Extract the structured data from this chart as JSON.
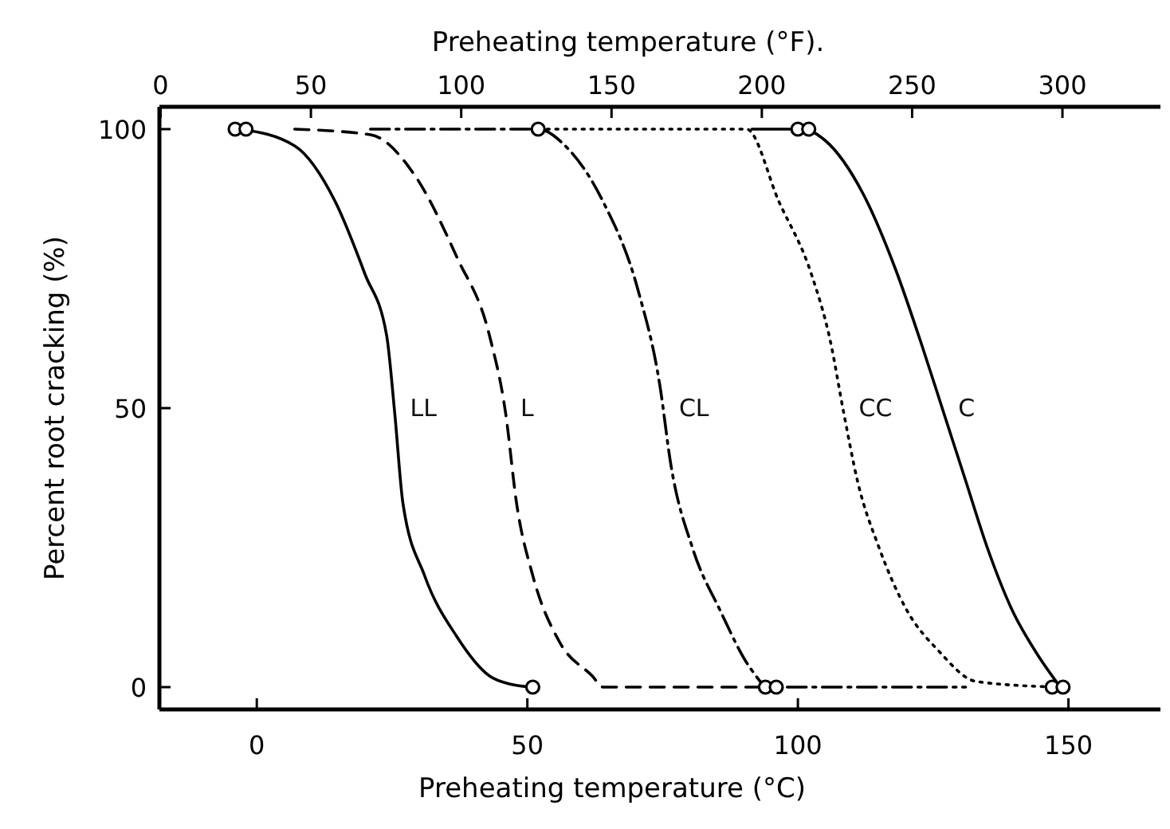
{
  "chart_data": {
    "type": "line",
    "xlabel": "Preheating temperature (°C)",
    "x2label": "Preheating temperature (°F).",
    "ylabel": "Percent root cracking (%)",
    "xlim": [
      -18,
      167
    ],
    "xticks": [
      0,
      50,
      100,
      150
    ],
    "x2lim": [
      -0.4,
      332.6
    ],
    "x2ticks": [
      0,
      50,
      100,
      150,
      200,
      250,
      300
    ],
    "ylim": [
      -4,
      104
    ],
    "yticks": [
      0,
      50,
      100
    ],
    "grid": false,
    "series": [
      {
        "name": "LL",
        "color": "#000000",
        "line_style": "solid",
        "marker": "none",
        "x": [
          -3,
          7,
          14.5,
          20,
          24,
          25.5,
          27,
          31,
          37,
          43,
          47,
          51
        ],
        "values": [
          100,
          97,
          87,
          74,
          63,
          49,
          33,
          20,
          9,
          2,
          0.5,
          0
        ]
      },
      {
        "name": "L",
        "color": "#000000",
        "line_style": "dashed",
        "marker": "none",
        "x": [
          7,
          21,
          29,
          37,
          43,
          46,
          48,
          51,
          56,
          62,
          64,
          93
        ],
        "values": [
          100,
          99,
          92,
          77,
          63,
          49,
          33,
          20,
          8,
          2,
          0,
          0
        ]
      },
      {
        "name": "CL",
        "color": "#000000",
        "line_style": "dashdot",
        "marker": "none",
        "x": [
          21,
          52,
          57,
          64,
          70.5,
          74.5,
          76.5,
          80.5,
          85.5,
          91.5,
          94.5,
          131
        ],
        "values": [
          100,
          100,
          97,
          87,
          71,
          54,
          40,
          25,
          14,
          3,
          0,
          0
        ]
      },
      {
        "name": "CC",
        "color": "#000000",
        "line_style": "dotted",
        "marker": "none",
        "x": [
          52,
          90.5,
          96.5,
          102.5,
          106,
          108.5,
          111,
          115,
          120,
          126,
          133,
          148
        ],
        "values": [
          100,
          100,
          87,
          74,
          62,
          49,
          37,
          25,
          14,
          6.5,
          1,
          0
        ]
      },
      {
        "name": "C",
        "color": "#000000",
        "line_style": "solid",
        "marker": "none",
        "x": [
          91.5,
          101,
          105,
          112,
          118,
          123,
          127,
          131,
          135,
          139.5,
          144.5,
          148.5
        ],
        "values": [
          100,
          100,
          98,
          88.5,
          75,
          61,
          49,
          37,
          25,
          14,
          5.5,
          0
        ]
      },
      {
        "type": "scatter",
        "color": "#000000",
        "marker": "circle",
        "x": [
          -4,
          -2,
          52,
          100,
          102,
          51,
          94,
          96,
          147,
          149
        ],
        "values": [
          100,
          100,
          100,
          100,
          100,
          0,
          0,
          0,
          0,
          0
        ]
      }
    ]
  }
}
